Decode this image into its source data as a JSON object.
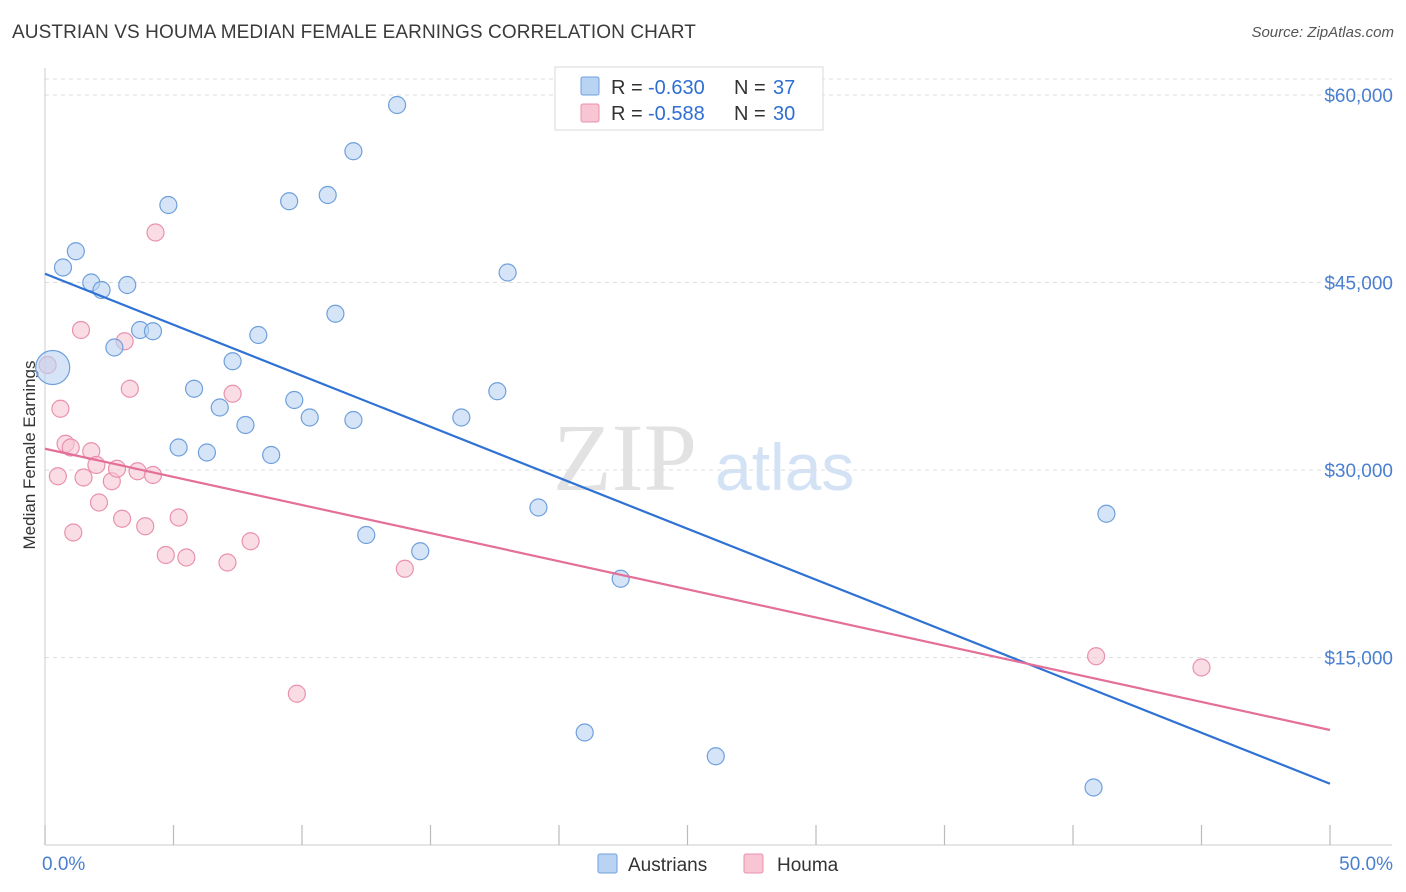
{
  "title": "AUSTRIAN VS HOUMA MEDIAN FEMALE EARNINGS CORRELATION CHART",
  "source": "Source: ZipAtlas.com",
  "watermark": {
    "zip": "ZIP",
    "atlas": "atlas"
  },
  "colors": {
    "austrians_fill": "#b9d3f2",
    "austrians_stroke": "#6f9fdc",
    "austrians_line": "#2f72d4",
    "houma_fill": "#f7c5d3",
    "houma_stroke": "#e991ad",
    "houma_line": "#e46f98",
    "grid": "#dddddd",
    "tick_text": "#4a7fcf"
  },
  "legend_top": {
    "austrians": {
      "r_label": "R = ",
      "r_value": "-0.630",
      "n_label": "N = ",
      "n_value": "37"
    },
    "houma": {
      "r_label": "R = ",
      "r_value": "-0.588",
      "n_label": "N = ",
      "n_value": "30"
    }
  },
  "chart_data": {
    "type": "scatter",
    "title": "AUSTRIAN VS HOUMA MEDIAN FEMALE EARNINGS CORRELATION CHART",
    "xlabel": "",
    "ylabel": "Median Female Earnings",
    "xlim": [
      0,
      50
    ],
    "ylim": [
      0,
      62000
    ],
    "x_tick_labels": [
      "0.0%",
      "50.0%"
    ],
    "y_ticks": [
      15000,
      30000,
      45000,
      60000
    ],
    "y_tick_labels": [
      "$15,000",
      "$30,000",
      "$45,000",
      "$60,000"
    ],
    "grid": true,
    "legend_position": "top-center",
    "series": [
      {
        "name": "Austrians",
        "points": [
          {
            "x": 0.3,
            "y": 38200,
            "big": true
          },
          {
            "x": 0.7,
            "y": 46200
          },
          {
            "x": 1.2,
            "y": 47500
          },
          {
            "x": 1.8,
            "y": 45000
          },
          {
            "x": 2.2,
            "y": 44400
          },
          {
            "x": 2.7,
            "y": 39800
          },
          {
            "x": 3.2,
            "y": 44800
          },
          {
            "x": 3.7,
            "y": 41200
          },
          {
            "x": 4.2,
            "y": 41100
          },
          {
            "x": 4.8,
            "y": 51200
          },
          {
            "x": 5.2,
            "y": 31800
          },
          {
            "x": 5.8,
            "y": 36500
          },
          {
            "x": 6.3,
            "y": 31400
          },
          {
            "x": 6.8,
            "y": 35000
          },
          {
            "x": 7.3,
            "y": 38700
          },
          {
            "x": 7.8,
            "y": 33600
          },
          {
            "x": 8.3,
            "y": 40800
          },
          {
            "x": 8.8,
            "y": 31200
          },
          {
            "x": 9.5,
            "y": 51500
          },
          {
            "x": 9.7,
            "y": 35600
          },
          {
            "x": 10.3,
            "y": 34200
          },
          {
            "x": 11.0,
            "y": 52000
          },
          {
            "x": 11.3,
            "y": 42500
          },
          {
            "x": 12.0,
            "y": 34000
          },
          {
            "x": 12.0,
            "y": 55500
          },
          {
            "x": 12.5,
            "y": 24800
          },
          {
            "x": 13.7,
            "y": 59200
          },
          {
            "x": 14.6,
            "y": 23500
          },
          {
            "x": 16.2,
            "y": 34200
          },
          {
            "x": 17.6,
            "y": 36300
          },
          {
            "x": 18.0,
            "y": 45800
          },
          {
            "x": 19.2,
            "y": 27000
          },
          {
            "x": 21.0,
            "y": 9000
          },
          {
            "x": 22.4,
            "y": 21300
          },
          {
            "x": 26.1,
            "y": 7100
          },
          {
            "x": 40.8,
            "y": 4600
          },
          {
            "x": 41.3,
            "y": 26500
          }
        ],
        "trend": {
          "x": [
            0,
            50
          ],
          "y": [
            45700,
            4900
          ]
        }
      },
      {
        "name": "Houma",
        "points": [
          {
            "x": 0.1,
            "y": 38400
          },
          {
            "x": 0.5,
            "y": 29500
          },
          {
            "x": 0.6,
            "y": 34900
          },
          {
            "x": 0.8,
            "y": 32100
          },
          {
            "x": 1.0,
            "y": 31800
          },
          {
            "x": 1.1,
            "y": 25000
          },
          {
            "x": 1.4,
            "y": 41200
          },
          {
            "x": 1.5,
            "y": 29400
          },
          {
            "x": 1.8,
            "y": 31500
          },
          {
            "x": 2.0,
            "y": 30400
          },
          {
            "x": 2.1,
            "y": 27400
          },
          {
            "x": 2.6,
            "y": 29100
          },
          {
            "x": 2.8,
            "y": 30100
          },
          {
            "x": 3.0,
            "y": 26100
          },
          {
            "x": 3.1,
            "y": 40300
          },
          {
            "x": 3.3,
            "y": 36500
          },
          {
            "x": 3.6,
            "y": 29900
          },
          {
            "x": 3.9,
            "y": 25500
          },
          {
            "x": 4.2,
            "y": 29600
          },
          {
            "x": 4.3,
            "y": 49000
          },
          {
            "x": 4.7,
            "y": 23200
          },
          {
            "x": 5.2,
            "y": 26200
          },
          {
            "x": 5.5,
            "y": 23000
          },
          {
            "x": 7.1,
            "y": 22600
          },
          {
            "x": 7.3,
            "y": 36100
          },
          {
            "x": 8.0,
            "y": 24300
          },
          {
            "x": 9.8,
            "y": 12100
          },
          {
            "x": 14.0,
            "y": 22100
          },
          {
            "x": 40.9,
            "y": 15100
          },
          {
            "x": 45.0,
            "y": 14200
          }
        ],
        "trend": {
          "x": [
            0,
            50
          ],
          "y": [
            31700,
            9200
          ]
        }
      }
    ]
  }
}
